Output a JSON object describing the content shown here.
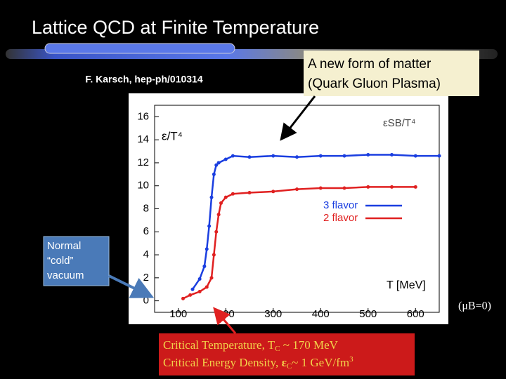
{
  "slide": {
    "title": "Lattice QCD at Finite Temperature",
    "citation": "F. Karsch, hep-ph/010314",
    "qgp_callout": [
      "A new form of matter",
      "(Quark Gluon Plasma)"
    ],
    "vacuum_callout": [
      "Normal",
      "“cold”",
      "vacuum"
    ],
    "critical_temperature": [
      "Critical Temperature,    T",
      "C",
      " ~ 170 MeV"
    ],
    "critical_density": [
      "Critical Energy Density, ",
      "ε",
      "C",
      "~ 1 GeV/fm",
      "3"
    ],
    "condition": "(μB=0)"
  },
  "chart_data": {
    "type": "line",
    "y_label": "ε/T⁴",
    "x_label": "T [MeV]",
    "annotation": "εSB/T⁴",
    "xlim": [
      50,
      650
    ],
    "xticks": [
      100,
      200,
      300,
      400,
      500,
      600
    ],
    "ylim": [
      -1,
      17
    ],
    "yticks": [
      0,
      2,
      4,
      6,
      8,
      10,
      12,
      14,
      16
    ],
    "legend": "right",
    "series": [
      {
        "name": "3 flavor",
        "color": "#1a3ee0",
        "x": [
          130,
          145,
          155,
          160,
          165,
          170,
          175,
          180,
          185,
          200,
          215,
          250,
          300,
          350,
          400,
          450,
          500,
          550,
          600,
          650
        ],
        "values": [
          1.0,
          1.9,
          3,
          4.5,
          6.5,
          9,
          11,
          11.8,
          12,
          12.3,
          12.6,
          12.5,
          12.6,
          12.5,
          12.6,
          12.6,
          12.7,
          12.7,
          12.6,
          12.6
        ]
      },
      {
        "name": "2 flavor",
        "color": "#e02020",
        "x": [
          110,
          125,
          145,
          160,
          170,
          175,
          180,
          185,
          190,
          200,
          215,
          250,
          300,
          350,
          400,
          450,
          500,
          550,
          600
        ],
        "values": [
          0.2,
          0.5,
          0.8,
          1.2,
          2,
          4,
          6,
          7.5,
          8.5,
          9,
          9.3,
          9.4,
          9.5,
          9.7,
          9.8,
          9.8,
          9.9,
          9.9,
          9.9
        ]
      }
    ]
  }
}
